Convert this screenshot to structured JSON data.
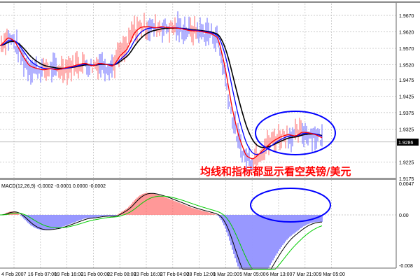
{
  "chart_data": {
    "type": "line",
    "symbol_note": "均线和指标都显示看空英镑/美元",
    "price_axis": {
      "ticks": [
        "1.9670",
        "1.9620",
        "1.9570",
        "1.9520",
        "1.9475",
        "1.9425",
        "1.9375",
        "1.9325",
        "1.9225",
        "1.9175"
      ],
      "tick_values": [
        1.967,
        1.962,
        1.957,
        1.952,
        1.9475,
        1.9425,
        1.9375,
        1.9325,
        1.9225,
        1.9175
      ],
      "range": [
        1.9175,
        1.967
      ],
      "current_price": "1.9286",
      "current_value": 1.9286
    },
    "x_axis": {
      "ticks": [
        "4 Feb 2007",
        "16 Feb 07:00",
        "19 Feb 16:00",
        "21 Feb 00:00",
        "22 Feb 08:00",
        "23 Feb 16:00",
        "27 Feb 04:00",
        "28 Feb 12:00",
        "1 Mar 20:00",
        "5 Mar 05:00",
        "6 Mar 13:00",
        "7 Mar 21:00",
        "9 Mar 05:00"
      ]
    },
    "grid": true,
    "closes": [
      1.9579,
      1.9606,
      1.9589,
      1.9547,
      1.9515,
      1.9509,
      1.9504,
      1.9509,
      1.9504,
      1.9511,
      1.9515,
      1.9521,
      1.9526,
      1.9515,
      1.9526,
      1.9521,
      1.9515,
      1.9551,
      1.9568,
      1.9621,
      1.9636,
      1.9636,
      1.9632,
      1.9636,
      1.9632,
      1.9632,
      1.9628,
      1.9623,
      1.9623,
      1.9619,
      1.9615,
      1.96,
      1.9504,
      1.9377,
      1.9292,
      1.9239,
      1.9233,
      1.9254,
      1.9275,
      1.9292,
      1.9303,
      1.9309,
      1.9303,
      1.9317,
      1.9313,
      1.9307,
      1.9296
    ],
    "series_colors": {
      "fast_ma": "#ff0000",
      "mid_ma": "#0000ff",
      "slow_ma": "#000000",
      "bars_up": "#ff7f7f",
      "bars_down": "#7f7fff"
    },
    "macd": {
      "label": "MACD(12,26,9) -0.0002 -0.0001 0.0000 -0.0002",
      "ticks": [
        "0.0047",
        "0.00",
        "-0.008"
      ],
      "tick_values": [
        0.0047,
        0,
        -0.008
      ],
      "range": [
        -0.008,
        0.0047
      ],
      "colors": {
        "positive": "#ff7f7f",
        "negative": "#7f7fff",
        "main": "#000000",
        "signal": "#00cc00"
      }
    },
    "annotation_color": "#0000ff"
  }
}
